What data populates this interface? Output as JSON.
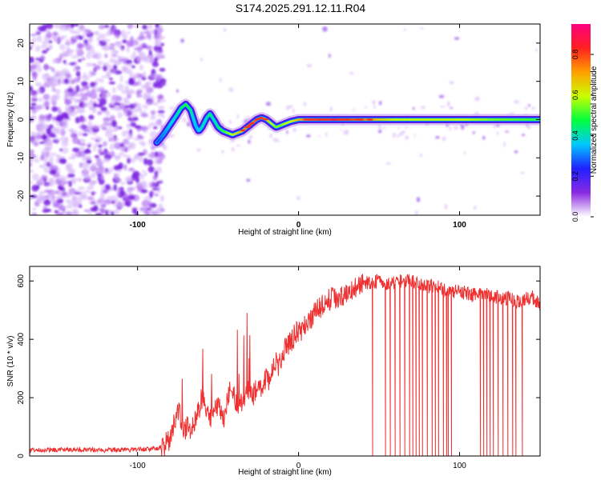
{
  "title": "S174.2025.291.12.11.R04",
  "chart_data": [
    {
      "type": "heatmap",
      "xlabel": "Height of straight line (km)",
      "ylabel": "Frequency (Hz)",
      "xlim": [
        -167,
        150
      ],
      "ylim": [
        -25,
        25
      ],
      "xticks": [
        -100,
        0,
        100
      ],
      "yticks": [
        -20,
        -10,
        0,
        10,
        20
      ],
      "colorbar": {
        "label": "Normalized spectral amplitude",
        "range": [
          0,
          0.95
        ],
        "ticks": [
          0.0,
          0.2,
          0.4,
          0.6,
          0.8
        ],
        "colors": [
          "#ffffff",
          "#8a2be2",
          "#2020ff",
          "#00c8ff",
          "#00ff40",
          "#c8ff00",
          "#ffa000",
          "#ff2020",
          "#ff0080"
        ]
      },
      "noise_region": {
        "x": [
          -167,
          -88
        ],
        "y": [
          -25,
          25
        ],
        "amplitude": [
          0.05,
          0.2
        ]
      },
      "signal_track": {
        "x": [
          -88,
          -84,
          -80,
          -76,
          -73,
          -70,
          -67,
          -64,
          -62,
          -60,
          -57,
          -55,
          -52,
          -50,
          -47,
          -44,
          -41,
          -38,
          -35,
          -32,
          -29,
          -26,
          -23,
          -20,
          -17,
          -14,
          -11,
          -8,
          -5,
          -2,
          0,
          20,
          40,
          60,
          80,
          100,
          120,
          150
        ],
        "y": [
          -6,
          -4,
          -1.5,
          1,
          3,
          4,
          2.5,
          -1.5,
          -3,
          -2,
          0.5,
          1.5,
          -0.5,
          -2,
          -3,
          -3.5,
          -4,
          -3.5,
          -3,
          -2,
          -1,
          0,
          0.5,
          0,
          -1,
          -2,
          -1.5,
          -1,
          -0.5,
          -0.2,
          0,
          0,
          0,
          0,
          0,
          0,
          0,
          0
        ],
        "amplitude": [
          0.25,
          0.3,
          0.35,
          0.4,
          0.45,
          0.5,
          0.45,
          0.35,
          0.35,
          0.4,
          0.4,
          0.45,
          0.4,
          0.45,
          0.5,
          0.55,
          0.6,
          0.65,
          0.7,
          0.75,
          0.75,
          0.8,
          0.8,
          0.7,
          0.6,
          0.55,
          0.55,
          0.6,
          0.6,
          0.65,
          0.7,
          0.9,
          0.75,
          0.6,
          0.6,
          0.6,
          0.55,
          0.5
        ]
      }
    },
    {
      "type": "line",
      "xlabel": "Height of straight line (km)",
      "ylabel": "SNR (10 * v/v)",
      "xlim": [
        -167,
        150
      ],
      "ylim": [
        0,
        650
      ],
      "xticks": [
        -100,
        0,
        100
      ],
      "yticks": [
        0,
        200,
        400,
        600
      ],
      "series": [
        {
          "color": "#f03030",
          "x": [
            -167,
            -140,
            -120,
            -100,
            -90,
            -85,
            -80,
            -78,
            -76,
            -74,
            -72,
            -70,
            -68,
            -66,
            -64,
            -62,
            -60,
            -58,
            -56,
            -54,
            -52,
            -50,
            -48,
            -46,
            -44,
            -42,
            -40,
            -38,
            -36,
            -34,
            -32,
            -30,
            -28,
            -26,
            -24,
            -22,
            -20,
            -18,
            -16,
            -14,
            -12,
            -10,
            -8,
            -6,
            -4,
            -2,
            0,
            5,
            10,
            15,
            20,
            25,
            30,
            35,
            40,
            45,
            50,
            55,
            60,
            65,
            70,
            75,
            80,
            85,
            90,
            95,
            100,
            105,
            110,
            115,
            120,
            125,
            130,
            135,
            140,
            145,
            150
          ],
          "y": [
            20,
            22,
            20,
            22,
            25,
            30,
            60,
            100,
            130,
            150,
            110,
            90,
            100,
            95,
            130,
            160,
            200,
            170,
            150,
            130,
            160,
            180,
            150,
            130,
            200,
            250,
            200,
            180,
            170,
            200,
            230,
            200,
            210,
            240,
            230,
            250,
            270,
            260,
            300,
            320,
            310,
            340,
            370,
            380,
            400,
            420,
            420,
            450,
            490,
            520,
            540,
            545,
            555,
            580,
            600,
            590,
            600,
            590,
            595,
            600,
            600,
            590,
            580,
            585,
            570,
            560,
            565,
            555,
            550,
            555,
            550,
            540,
            540,
            530,
            535,
            545,
            520
          ]
        }
      ],
      "dropouts_x": [
        46,
        54,
        57,
        60,
        63,
        66,
        69,
        71,
        73,
        75,
        77,
        80,
        83,
        85,
        87,
        90,
        92,
        93,
        95,
        113,
        115,
        117,
        119,
        121,
        124,
        127,
        130,
        133,
        135,
        139
      ]
    }
  ]
}
